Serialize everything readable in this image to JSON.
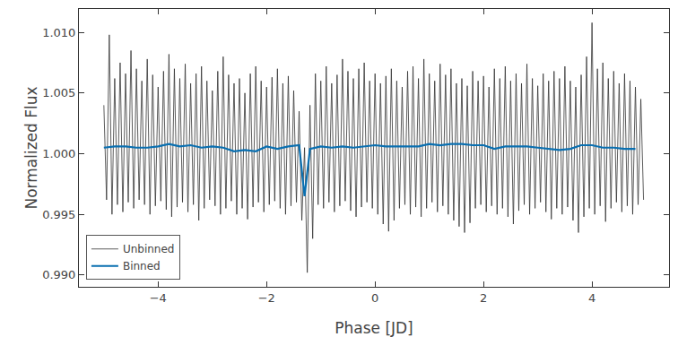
{
  "chart_data": {
    "type": "line",
    "x_label": "Phase [JD]",
    "y_label": "Normalized Flux",
    "legend": "lower left",
    "grid": false,
    "xlim": [
      -5.46,
      5.42
    ],
    "ylim": [
      0.98903,
      1.01193
    ],
    "xticks": [
      {
        "value": -4,
        "label": "−4"
      },
      {
        "value": -2,
        "label": "−2"
      },
      0,
      2,
      4
    ],
    "yticks": [
      {
        "value": 0.99,
        "label": "0.990"
      },
      {
        "value": 0.995,
        "label": "0.995"
      },
      {
        "value": 1.0,
        "label": "1.000"
      },
      {
        "value": 1.005,
        "label": "1.005"
      },
      {
        "value": 1.01,
        "label": "1.010"
      }
    ],
    "series": [
      {
        "name": "Unbinned",
        "color": "#333333",
        "x": [
          -5.0,
          -4.95,
          -4.9,
          -4.85,
          -4.8,
          -4.75,
          -4.7,
          -4.65,
          -4.6,
          -4.55,
          -4.5,
          -4.45,
          -4.4,
          -4.35,
          -4.3,
          -4.25,
          -4.2,
          -4.15,
          -4.1,
          -4.05,
          -4.0,
          -3.95,
          -3.9,
          -3.85,
          -3.8,
          -3.75,
          -3.7,
          -3.65,
          -3.6,
          -3.55,
          -3.5,
          -3.45,
          -3.4,
          -3.35,
          -3.3,
          -3.25,
          -3.2,
          -3.15,
          -3.1,
          -3.05,
          -3.0,
          -2.95,
          -2.9,
          -2.85,
          -2.8,
          -2.75,
          -2.7,
          -2.65,
          -2.6,
          -2.55,
          -2.5,
          -2.45,
          -2.4,
          -2.35,
          -2.3,
          -2.25,
          -2.2,
          -2.15,
          -2.1,
          -2.05,
          -2.0,
          -1.95,
          -1.9,
          -1.85,
          -1.8,
          -1.75,
          -1.7,
          -1.65,
          -1.6,
          -1.55,
          -1.5,
          -1.45,
          -1.4,
          -1.35,
          -1.3,
          -1.25,
          -1.2,
          -1.15,
          -1.1,
          -1.05,
          -1.0,
          -0.95,
          -0.9,
          -0.85,
          -0.8,
          -0.75,
          -0.7,
          -0.65,
          -0.6,
          -0.55,
          -0.5,
          -0.45,
          -0.4,
          -0.35,
          -0.3,
          -0.25,
          -0.2,
          -0.15,
          -0.1,
          -0.05,
          0.0,
          0.05,
          0.1,
          0.15,
          0.2,
          0.25,
          0.3,
          0.35,
          0.4,
          0.45,
          0.5,
          0.55,
          0.6,
          0.65,
          0.7,
          0.75,
          0.8,
          0.85,
          0.9,
          0.95,
          1.0,
          1.05,
          1.1,
          1.15,
          1.2,
          1.25,
          1.3,
          1.35,
          1.4,
          1.45,
          1.5,
          1.55,
          1.6,
          1.65,
          1.7,
          1.75,
          1.8,
          1.85,
          1.9,
          1.95,
          2.0,
          2.05,
          2.1,
          2.15,
          2.2,
          2.25,
          2.3,
          2.35,
          2.4,
          2.45,
          2.5,
          2.55,
          2.6,
          2.65,
          2.7,
          2.75,
          2.8,
          2.85,
          2.9,
          2.95,
          3.0,
          3.05,
          3.1,
          3.15,
          3.2,
          3.25,
          3.3,
          3.35,
          3.4,
          3.45,
          3.5,
          3.55,
          3.6,
          3.65,
          3.7,
          3.75,
          3.8,
          3.85,
          3.9,
          3.95,
          4.0,
          4.05,
          4.1,
          4.15,
          4.2,
          4.25,
          4.3,
          4.35,
          4.4,
          4.45,
          4.5,
          4.55,
          4.6,
          4.65,
          4.7,
          4.75,
          4.8,
          4.85,
          4.9,
          4.95
        ],
        "values": [
          1.004,
          0.9962,
          1.0098,
          0.995,
          1.0062,
          0.9958,
          1.0075,
          0.9952,
          1.0066,
          0.996,
          1.0085,
          0.9955,
          1.007,
          0.9962,
          1.006,
          0.9958,
          1.0078,
          0.995,
          1.0065,
          0.9957,
          1.0055,
          0.9961,
          1.0068,
          0.9954,
          1.0082,
          0.9948,
          1.007,
          0.9956,
          1.0062,
          0.996,
          1.0074,
          0.9952,
          1.0058,
          0.9958,
          1.0066,
          0.9945,
          1.0072,
          0.9955,
          1.006,
          0.9962,
          1.0052,
          0.9957,
          1.0068,
          0.995,
          1.008,
          0.9955,
          1.0065,
          0.9961,
          1.0058,
          0.995,
          1.0062,
          0.9955,
          1.005,
          0.9946,
          1.0066,
          0.9956,
          1.0072,
          0.996,
          1.006,
          0.9952,
          1.0055,
          0.9958,
          1.0063,
          0.9961,
          1.007,
          0.9955,
          1.0058,
          0.995,
          1.0064,
          0.9957,
          1.0052,
          0.996,
          1.0035,
          0.9945,
          1.0005,
          0.9902,
          1.004,
          0.993,
          1.0066,
          0.9958,
          1.006,
          0.9955,
          1.0072,
          0.996,
          1.0058,
          0.9952,
          1.0065,
          0.9957,
          1.0078,
          0.9961,
          1.0068,
          0.9953,
          1.0062,
          0.9948,
          1.007,
          0.9956,
          1.0075,
          0.996,
          1.006,
          0.9955,
          1.0066,
          0.995,
          1.0058,
          0.9942,
          1.0064,
          0.9936,
          1.007,
          0.9945,
          1.006,
          0.9955,
          1.0055,
          0.9958,
          1.0068,
          0.995,
          1.0072,
          0.9956,
          1.0062,
          0.9948,
          1.0078,
          0.9955,
          1.0066,
          0.996,
          1.006,
          0.9952,
          1.0074,
          0.9957,
          1.0065,
          0.995,
          1.007,
          0.9945,
          1.0058,
          0.994,
          1.0062,
          0.9935,
          1.0056,
          0.9943,
          1.0068,
          0.9955,
          1.006,
          0.9958,
          1.0064,
          0.9952,
          1.0055,
          0.9957,
          1.007,
          0.995,
          1.0062,
          0.9955,
          1.0072,
          0.9948,
          1.006,
          0.9942,
          1.0066,
          0.9953,
          1.0058,
          0.9958,
          1.0074,
          0.995,
          1.0062,
          0.9955,
          1.0056,
          0.996,
          1.0066,
          0.9952,
          1.006,
          0.9946,
          1.0068,
          0.9955,
          1.0062,
          0.995,
          1.0072,
          0.9956,
          1.006,
          0.9945,
          1.0055,
          0.9935,
          1.0065,
          0.9948,
          1.008,
          0.9955,
          1.0108,
          0.995,
          1.007,
          0.9957,
          1.0075,
          0.9944,
          1.0062,
          0.9955,
          1.0068,
          0.996,
          1.0058,
          0.9952,
          1.0066,
          0.9957,
          1.006,
          0.995,
          1.0055,
          0.9958,
          1.0045,
          0.9962
        ]
      },
      {
        "name": "Binned",
        "color": "#0a6fb0",
        "x": [
          -5.0,
          -4.8,
          -4.6,
          -4.4,
          -4.2,
          -4.0,
          -3.8,
          -3.6,
          -3.4,
          -3.2,
          -3.0,
          -2.8,
          -2.6,
          -2.4,
          -2.2,
          -2.0,
          -1.8,
          -1.6,
          -1.4,
          -1.3,
          -1.2,
          -1.0,
          -0.8,
          -0.6,
          -0.4,
          -0.2,
          0.0,
          0.2,
          0.4,
          0.6,
          0.8,
          1.0,
          1.2,
          1.4,
          1.6,
          1.8,
          2.0,
          2.2,
          2.4,
          2.6,
          2.8,
          3.0,
          3.2,
          3.4,
          3.6,
          3.8,
          4.0,
          4.2,
          4.4,
          4.6,
          4.8
        ],
        "values": [
          1.0005,
          1.0006,
          1.0006,
          1.0005,
          1.0005,
          1.0006,
          1.0008,
          1.0006,
          1.0007,
          1.0005,
          1.0006,
          1.0005,
          1.0002,
          1.0003,
          1.0002,
          1.0006,
          1.0004,
          1.0006,
          1.0007,
          0.9965,
          1.0004,
          1.0006,
          1.0005,
          1.0006,
          1.0005,
          1.0006,
          1.0007,
          1.0006,
          1.0006,
          1.0006,
          1.0006,
          1.0008,
          1.0007,
          1.0008,
          1.0008,
          1.0007,
          1.0007,
          1.0004,
          1.0006,
          1.0006,
          1.0006,
          1.0005,
          1.0004,
          1.0003,
          1.0004,
          1.0007,
          1.0007,
          1.0005,
          1.0005,
          1.0004,
          1.0004
        ]
      }
    ]
  }
}
